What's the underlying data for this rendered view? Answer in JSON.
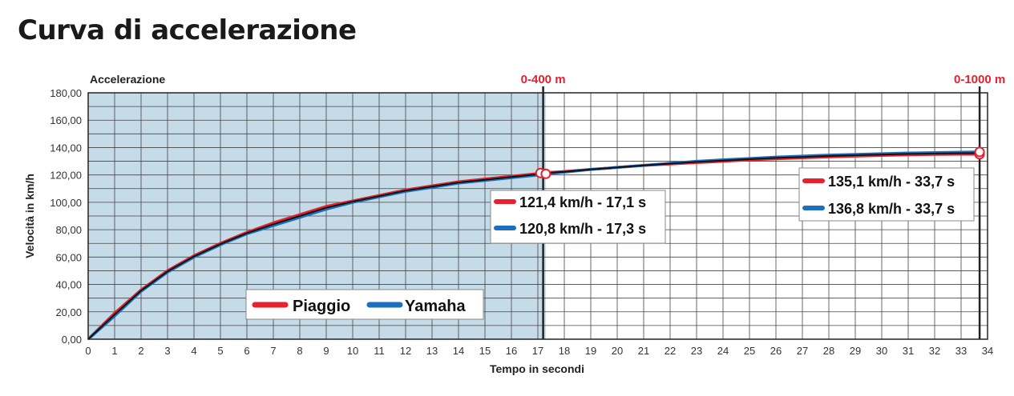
{
  "title": "Curva di accelerazione",
  "chart_data": {
    "type": "line",
    "corner_label": "Accelerazione",
    "xlabel": "Tempo in secondi",
    "ylabel": "Velocità in km/h",
    "xlim": [
      0,
      34
    ],
    "ylim": [
      0,
      180
    ],
    "x_ticks": [
      0,
      1,
      2,
      3,
      4,
      5,
      6,
      7,
      8,
      9,
      10,
      11,
      12,
      13,
      14,
      15,
      16,
      17,
      18,
      19,
      20,
      21,
      22,
      23,
      24,
      25,
      26,
      27,
      28,
      29,
      30,
      31,
      32,
      33,
      34
    ],
    "y_ticks": [
      "0,00",
      "20,00",
      "40,00",
      "60,00",
      "80,00",
      "100,00",
      "120,00",
      "140,00",
      "160,00",
      "180,00"
    ],
    "y_tick_values": [
      0,
      20,
      40,
      60,
      80,
      100,
      120,
      140,
      160,
      180
    ],
    "grid": true,
    "shaded_region": [
      0,
      17.3
    ],
    "shaded_color": "#c5dbe8",
    "markers": [
      {
        "label": "0-400 m",
        "x": 17.2
      },
      {
        "label": "0-1000 m",
        "x": 33.7
      }
    ],
    "series": [
      {
        "name": "Piaggio",
        "color": "#e8212e",
        "x": [
          0,
          1,
          2,
          3,
          4,
          5,
          6,
          7,
          8,
          9,
          10,
          11,
          12,
          13,
          14,
          15,
          16,
          17,
          17.1,
          18,
          19,
          20,
          21,
          22,
          23,
          24,
          25,
          26,
          27,
          28,
          29,
          30,
          31,
          32,
          33,
          33.7
        ],
        "y": [
          0,
          19,
          36,
          50,
          61,
          70,
          78,
          85,
          91,
          97,
          101,
          105,
          109,
          112,
          115,
          117,
          119,
          121,
          121.4,
          122.5,
          124,
          125.5,
          127,
          128,
          129,
          130,
          131,
          131.8,
          132.5,
          133.2,
          133.8,
          134.3,
          134.7,
          135,
          135.1,
          135.1
        ]
      },
      {
        "name": "Yamaha",
        "color": "#1c6fbf",
        "x": [
          0,
          1,
          2,
          3,
          4,
          5,
          6,
          7,
          8,
          9,
          10,
          11,
          12,
          13,
          14,
          15,
          16,
          17,
          17.3,
          18,
          19,
          20,
          21,
          22,
          23,
          24,
          25,
          26,
          27,
          28,
          29,
          30,
          31,
          32,
          33,
          33.7
        ],
        "y": [
          0,
          17,
          35,
          49,
          60,
          69,
          77,
          83,
          89,
          95,
          100,
          104,
          108,
          111,
          114,
          116,
          118,
          120,
          120.8,
          122,
          124,
          125.5,
          127,
          128.5,
          130,
          131,
          132,
          133,
          133.8,
          134.5,
          135,
          135.5,
          136,
          136.3,
          136.6,
          136.8
        ]
      }
    ],
    "annotations": [
      {
        "group": "400m",
        "color": "#e8212e",
        "text": "121,4 km/h - 17,1 s"
      },
      {
        "group": "400m",
        "color": "#1c6fbf",
        "text": "120,8 km/h - 17,3 s"
      },
      {
        "group": "1000m",
        "color": "#e8212e",
        "text": "135,1 km/h - 33,7 s"
      },
      {
        "group": "1000m",
        "color": "#1c6fbf",
        "text": "136,8 km/h - 33,7 s"
      }
    ],
    "legend": {
      "placement": "bottom-left inside plot",
      "entries": [
        {
          "name": "Piaggio",
          "color": "#e8212e"
        },
        {
          "name": "Yamaha",
          "color": "#1c6fbf"
        }
      ]
    }
  }
}
